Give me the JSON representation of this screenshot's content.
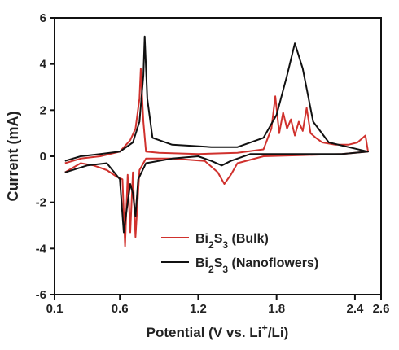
{
  "chart_data": {
    "type": "line",
    "x_label": "Potential (V vs. Li+/Li)",
    "y_label": "Current (mA)",
    "xlim": [
      0.1,
      2.6
    ],
    "xticks": [
      0.1,
      0.6,
      1.2,
      1.8,
      2.4,
      2.6
    ],
    "ylim": [
      -6,
      6
    ],
    "yticks": [
      -6,
      -4,
      -2,
      0,
      2,
      4,
      6
    ],
    "legend": "lower right",
    "series": [
      {
        "name": "Bi2S3 (Bulk)",
        "color": "#d0312d",
        "x": [
          0.18,
          0.3,
          0.45,
          0.6,
          0.68,
          0.72,
          0.75,
          0.76,
          0.78,
          0.8,
          0.9,
          1.2,
          1.5,
          1.7,
          1.76,
          1.79,
          1.82,
          1.85,
          1.88,
          1.91,
          1.94,
          1.97,
          2.0,
          2.03,
          2.06,
          2.1,
          2.15,
          2.25,
          2.35,
          2.42,
          2.48,
          2.5,
          2.3,
          2.0,
          1.7,
          1.5,
          1.45,
          1.4,
          1.35,
          1.25,
          1.0,
          0.8,
          0.75,
          0.72,
          0.7,
          0.68,
          0.66,
          0.64,
          0.62,
          0.58,
          0.5,
          0.4,
          0.3,
          0.18
        ],
        "values": [
          -0.3,
          -0.1,
          0.0,
          0.2,
          0.7,
          1.2,
          2.5,
          3.8,
          1.5,
          0.2,
          0.15,
          0.1,
          0.15,
          0.3,
          1.2,
          2.6,
          1.0,
          1.9,
          1.2,
          1.6,
          0.9,
          1.5,
          1.1,
          2.1,
          1.0,
          0.8,
          0.6,
          0.5,
          0.5,
          0.6,
          0.9,
          0.2,
          0.1,
          0.05,
          0.0,
          -0.3,
          -0.8,
          -1.2,
          -0.7,
          -0.2,
          -0.1,
          -0.1,
          -0.6,
          -3.5,
          -0.7,
          -3.3,
          -0.8,
          -3.9,
          -1.0,
          -0.9,
          -0.6,
          -0.4,
          -0.3,
          -0.7
        ]
      },
      {
        "name": "Bi2S3 (Nanoflowers)",
        "color": "#111111",
        "x": [
          0.18,
          0.3,
          0.45,
          0.6,
          0.7,
          0.75,
          0.78,
          0.79,
          0.81,
          0.85,
          1.0,
          1.3,
          1.5,
          1.7,
          1.8,
          1.88,
          1.94,
          2.0,
          2.08,
          2.2,
          2.35,
          2.5,
          2.3,
          2.0,
          1.6,
          1.45,
          1.38,
          1.3,
          1.2,
          1.0,
          0.8,
          0.74,
          0.72,
          0.7,
          0.68,
          0.66,
          0.63,
          0.6,
          0.5,
          0.35,
          0.18
        ],
        "values": [
          -0.2,
          0.0,
          0.1,
          0.2,
          0.6,
          1.5,
          3.5,
          5.2,
          2.5,
          0.8,
          0.5,
          0.4,
          0.4,
          0.8,
          1.8,
          3.5,
          4.9,
          3.8,
          1.5,
          0.6,
          0.4,
          0.2,
          0.1,
          0.1,
          0.1,
          -0.2,
          -0.4,
          -0.2,
          0.0,
          -0.1,
          -0.3,
          -1.0,
          -2.6,
          -1.6,
          -1.2,
          -2.0,
          -3.3,
          -1.0,
          -0.3,
          -0.4,
          -0.7
        ]
      }
    ]
  }
}
